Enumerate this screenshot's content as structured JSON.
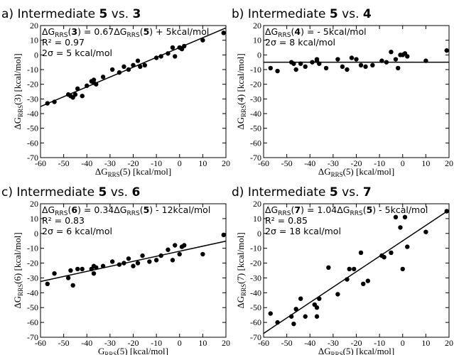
{
  "chart_data": [
    {
      "type": "scatter",
      "title": {
        "prefix": "a) Intermediate ",
        "bold1": "5",
        "mid": " vs. ",
        "bold2": "3"
      },
      "annotations": {
        "fit": {
          "pre": "ΔG",
          "sub": "RRS",
          "bold": "3",
          "mid": " = 0.67ΔG",
          "sub2": "RRS",
          "bold2": "5",
          "post": " + 5kcal/mol"
        },
        "r2": "R² = 0.97",
        "sigma": "2σ = 5 kcal/mol"
      },
      "xlabel": {
        "pre": "ΔG",
        "sub": "RRS",
        "post": "(5) [kcal/mol]"
      },
      "ylabel": {
        "pre": "ΔG",
        "sub": "RRS",
        "post": "(3) [kcal/mol]"
      },
      "xlim": [
        -60,
        20
      ],
      "ylim": [
        -70,
        20
      ],
      "xticks": [
        -60,
        -50,
        -40,
        -30,
        -20,
        -10,
        0,
        10,
        20
      ],
      "yticks": [
        -70,
        -60,
        -50,
        -40,
        -30,
        -20,
        -10,
        0,
        10,
        20
      ],
      "fit_line": {
        "slope": 0.67,
        "intercept": 5
      },
      "points": [
        [
          -57,
          -33
        ],
        [
          -54,
          -32
        ],
        [
          -48,
          -27
        ],
        [
          -47,
          -28
        ],
        [
          -46,
          -29
        ],
        [
          -45,
          -27
        ],
        [
          -44,
          -23
        ],
        [
          -42,
          -28
        ],
        [
          -40,
          -21
        ],
        [
          -38,
          -18
        ],
        [
          -37,
          -17
        ],
        [
          -37,
          -19
        ],
        [
          -36,
          -20
        ],
        [
          -33,
          -15
        ],
        [
          -29,
          -10
        ],
        [
          -26,
          -12
        ],
        [
          -24,
          -8
        ],
        [
          -22,
          -10
        ],
        [
          -20,
          -7
        ],
        [
          -18,
          -4
        ],
        [
          -17,
          -8
        ],
        [
          -15,
          -7
        ],
        [
          -10,
          -2
        ],
        [
          -8,
          -1
        ],
        [
          -5,
          1
        ],
        [
          -3,
          5
        ],
        [
          -2,
          -1
        ],
        [
          0,
          5
        ],
        [
          1,
          4
        ],
        [
          2,
          6
        ],
        [
          10,
          10
        ],
        [
          19,
          15
        ]
      ]
    },
    {
      "type": "scatter",
      "title": {
        "prefix": "b) Intermediate ",
        "bold1": "5",
        "mid": " vs. ",
        "bold2": "4"
      },
      "annotations": {
        "fit": {
          "pre": "ΔG",
          "sub": "RRS",
          "bold": "4",
          "mid": " = - 5kcal/mol",
          "sub2": "",
          "bold2": "",
          "post": ""
        },
        "r2": "",
        "sigma": "2σ = 8 kcal/mol"
      },
      "xlabel": {
        "pre": "ΔG",
        "sub": "RRS",
        "post": "(5) [kcal/mol]"
      },
      "ylabel": {
        "pre": "ΔG",
        "sub": "RRS",
        "post": "(4) [kcal/mol]"
      },
      "xlim": [
        -60,
        20
      ],
      "ylim": [
        -70,
        20
      ],
      "xticks": [
        -60,
        -50,
        -40,
        -30,
        -20,
        -10,
        0,
        10,
        20
      ],
      "yticks": [
        -70,
        -60,
        -50,
        -40,
        -30,
        -20,
        -10,
        0,
        10,
        20
      ],
      "fit_line": {
        "slope": 0,
        "intercept": -5
      },
      "points": [
        [
          -57,
          -9
        ],
        [
          -54,
          -11
        ],
        [
          -48,
          -5
        ],
        [
          -47,
          -6
        ],
        [
          -46,
          -10
        ],
        [
          -44,
          -6
        ],
        [
          -42,
          -8
        ],
        [
          -39,
          -5
        ],
        [
          -37,
          -4
        ],
        [
          -37,
          -3
        ],
        [
          -36,
          -6
        ],
        [
          -33,
          -9
        ],
        [
          -28,
          -3
        ],
        [
          -26,
          -8
        ],
        [
          -24,
          -10
        ],
        [
          -22,
          -2
        ],
        [
          -20,
          -3
        ],
        [
          -18,
          -7
        ],
        [
          -16,
          -8
        ],
        [
          -13,
          -7
        ],
        [
          -9,
          -4
        ],
        [
          -7,
          -5
        ],
        [
          -5,
          2
        ],
        [
          -3,
          -3
        ],
        [
          -2,
          -9
        ],
        [
          -1,
          0
        ],
        [
          0,
          0
        ],
        [
          1,
          1
        ],
        [
          2,
          -1
        ],
        [
          10,
          -4
        ],
        [
          19,
          3
        ]
      ]
    },
    {
      "type": "scatter",
      "title": {
        "prefix": "c) Intermediate ",
        "bold1": "5",
        "mid": " vs. ",
        "bold2": "6"
      },
      "annotations": {
        "fit": {
          "pre": "ΔG",
          "sub": "RRS",
          "bold": "6",
          "mid": " = 0.34ΔG",
          "sub2": "RRS",
          "bold2": "5",
          "post": " - 12kcal/mol"
        },
        "r2": "R² = 0.83",
        "sigma": "2σ = 6 kcal/mol"
      },
      "xlabel": {
        "pre": "G",
        "sub": "RRS",
        "post": "(5) [kcal/mol]"
      },
      "ylabel": {
        "pre": "ΔG",
        "sub": "RRS",
        "post": "(6) [kcal/mol]"
      },
      "xlim": [
        -60,
        20
      ],
      "ylim": [
        -70,
        20
      ],
      "xticks": [
        -60,
        -50,
        -40,
        -30,
        -20,
        -10,
        0,
        10,
        20
      ],
      "yticks": [
        -70,
        -60,
        -50,
        -40,
        -30,
        -20,
        -10,
        0,
        10,
        20
      ],
      "fit_line": {
        "slope": 0.34,
        "intercept": -12
      },
      "points": [
        [
          -57,
          -34
        ],
        [
          -54,
          -27
        ],
        [
          -48,
          -30
        ],
        [
          -47,
          -25
        ],
        [
          -46,
          -35
        ],
        [
          -44,
          -24
        ],
        [
          -42,
          -24
        ],
        [
          -38,
          -24
        ],
        [
          -37,
          -27
        ],
        [
          -37,
          -22
        ],
        [
          -36,
          -23
        ],
        [
          -33,
          -22
        ],
        [
          -29,
          -19
        ],
        [
          -26,
          -21
        ],
        [
          -24,
          -20
        ],
        [
          -22,
          -17
        ],
        [
          -20,
          -22
        ],
        [
          -18,
          -20
        ],
        [
          -16,
          -15
        ],
        [
          -13,
          -19
        ],
        [
          -10,
          -18
        ],
        [
          -8,
          -15
        ],
        [
          -5,
          -11
        ],
        [
          -3,
          -18
        ],
        [
          -2,
          -8
        ],
        [
          0,
          -14
        ],
        [
          1,
          -9
        ],
        [
          2,
          -8
        ],
        [
          10,
          -14
        ],
        [
          19,
          -1
        ]
      ]
    },
    {
      "type": "scatter",
      "title": {
        "prefix": "d) Intermediate ",
        "bold1": "5",
        "mid": " vs. ",
        "bold2": "7"
      },
      "annotations": {
        "fit": {
          "pre": "ΔG",
          "sub": "RRS",
          "bold": "7",
          "mid": " = 1.04ΔG",
          "sub2": "RRS",
          "bold2": "5",
          "post": " - 5kcal/mol"
        },
        "r2": "R² = 0.85",
        "sigma": "2σ = 18 kcal/mol"
      },
      "xlabel": {
        "pre": "ΔG",
        "sub": "RRS",
        "post": "(5) [kcal/mol]"
      },
      "ylabel": {
        "pre": "ΔG",
        "sub": "RRS",
        "post": "(7) [kcal/mol]"
      },
      "xlim": [
        -60,
        20
      ],
      "ylim": [
        -70,
        20
      ],
      "xticks": [
        -60,
        -50,
        -40,
        -30,
        -20,
        -10,
        0,
        10,
        20
      ],
      "yticks": [
        -70,
        -60,
        -50,
        -40,
        -30,
        -20,
        -10,
        0,
        10,
        20
      ],
      "fit_line": {
        "slope": 1.04,
        "intercept": -5
      },
      "points": [
        [
          -57,
          -54
        ],
        [
          -54,
          -60
        ],
        [
          -48,
          -56
        ],
        [
          -47,
          -61
        ],
        [
          -46,
          -51
        ],
        [
          -44,
          -44
        ],
        [
          -42,
          -56
        ],
        [
          -38,
          -48
        ],
        [
          -37,
          -50
        ],
        [
          -37,
          -56
        ],
        [
          -36,
          -44
        ],
        [
          -32,
          -23
        ],
        [
          -28,
          -41
        ],
        [
          -24,
          -31
        ],
        [
          -23,
          -24
        ],
        [
          -21,
          -24
        ],
        [
          -18,
          -13
        ],
        [
          -17,
          -34
        ],
        [
          -15,
          -32
        ],
        [
          -9,
          -15
        ],
        [
          -8,
          -16
        ],
        [
          -5,
          -13
        ],
        [
          -3,
          11
        ],
        [
          -1,
          4
        ],
        [
          0,
          -24
        ],
        [
          1,
          11
        ],
        [
          2,
          -9
        ],
        [
          10,
          1
        ],
        [
          19,
          15
        ]
      ]
    }
  ]
}
